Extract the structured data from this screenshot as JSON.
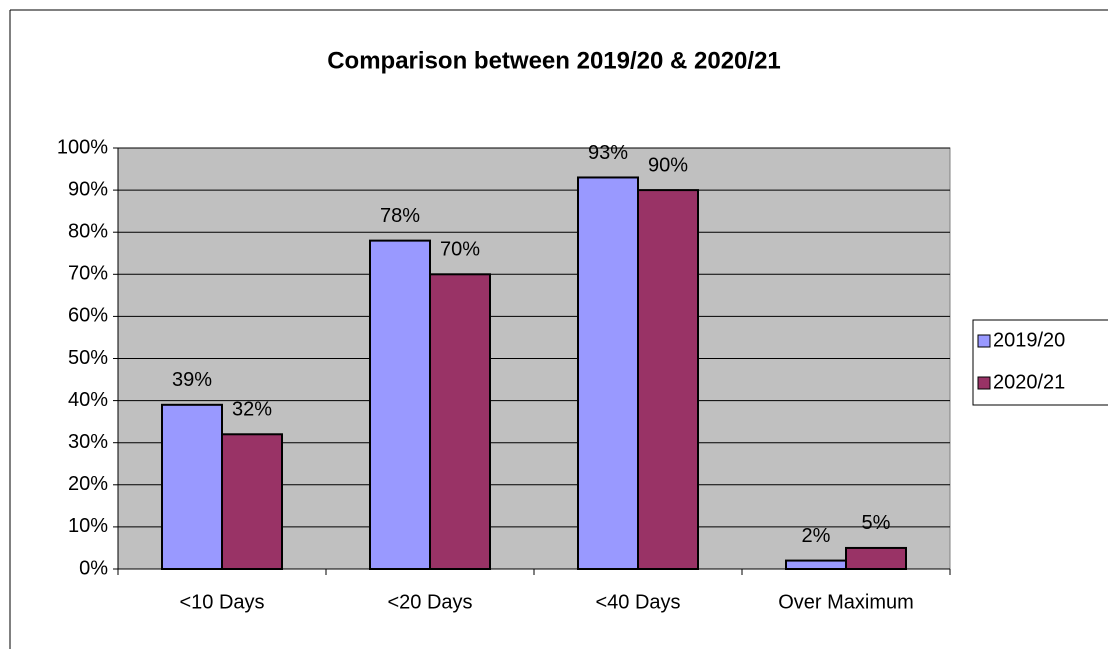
{
  "chart_data": {
    "type": "bar",
    "title": "Comparison between 2019/20 & 2020/21",
    "categories": [
      "<10 Days",
      "<20 Days",
      "<40 Days",
      "Over Maximum"
    ],
    "series": [
      {
        "name": "2019/20",
        "color": "#9999ff",
        "values": [
          39,
          78,
          93,
          2
        ],
        "value_labels": [
          "39%",
          "78%",
          "93%",
          "2%"
        ]
      },
      {
        "name": "2020/21",
        "color": "#993366",
        "values": [
          32,
          70,
          90,
          5
        ],
        "value_labels": [
          "32%",
          "70%",
          "90%",
          "5%"
        ]
      }
    ],
    "ylim": [
      0,
      100
    ],
    "yticks": [
      {
        "value": 0,
        "label": "0%"
      },
      {
        "value": 10,
        "label": "10%"
      },
      {
        "value": 20,
        "label": "20%"
      },
      {
        "value": 30,
        "label": "30%"
      },
      {
        "value": 40,
        "label": "40%"
      },
      {
        "value": 50,
        "label": "50%"
      },
      {
        "value": 60,
        "label": "60%"
      },
      {
        "value": 70,
        "label": "70%"
      },
      {
        "value": 80,
        "label": "80%"
      },
      {
        "value": 90,
        "label": "90%"
      },
      {
        "value": 100,
        "label": "100%"
      }
    ],
    "grid": true,
    "legend": "right",
    "plot_background": "#c0c0c0"
  }
}
